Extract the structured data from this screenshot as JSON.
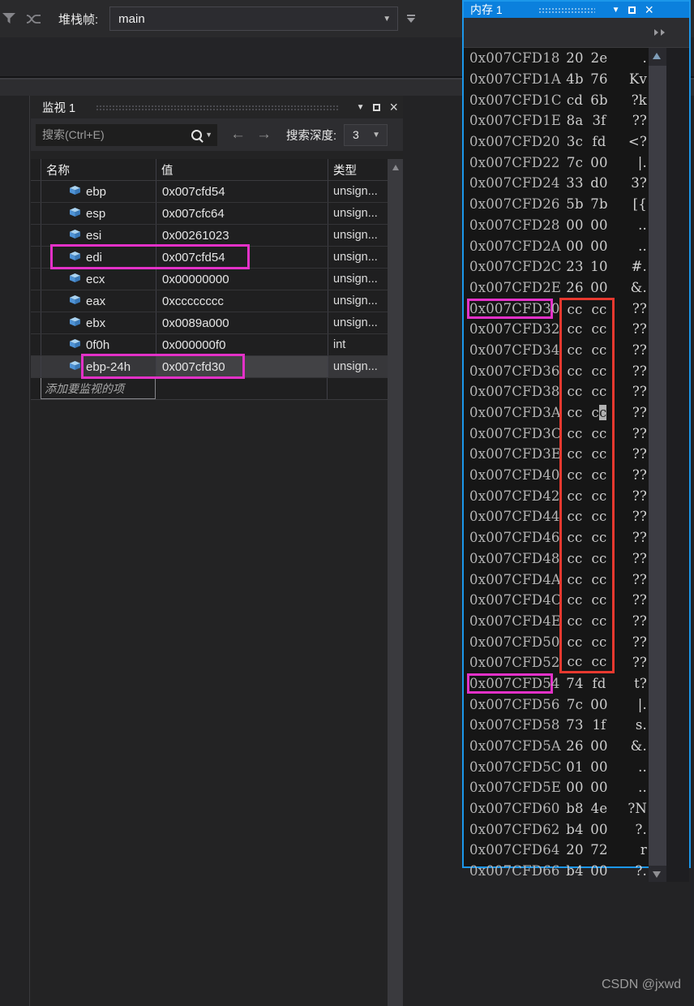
{
  "toolbar": {
    "stack_frame_label": "堆栈帧:",
    "stack_frame_value": "main"
  },
  "watch": {
    "title": "监视 1",
    "search_placeholder": "搜索(Ctrl+E)",
    "depth_label": "搜索深度:",
    "depth_value": "3",
    "columns": [
      "名称",
      "值",
      "类型"
    ],
    "rows": [
      {
        "name": "ebp",
        "value": "0x007cfd54",
        "type": "unsign..."
      },
      {
        "name": "esp",
        "value": "0x007cfc64",
        "type": "unsign..."
      },
      {
        "name": "esi",
        "value": "0x00261023",
        "type": "unsign..."
      },
      {
        "name": "edi",
        "value": "0x007cfd54",
        "type": "unsign...",
        "annot": true
      },
      {
        "name": "ecx",
        "value": "0x00000000",
        "type": "unsign..."
      },
      {
        "name": "eax",
        "value": "0xcccccccc",
        "type": "unsign..."
      },
      {
        "name": "ebx",
        "value": "0x0089a000",
        "type": "unsign..."
      },
      {
        "name": "0f0h",
        "value": "0x000000f0",
        "type": "int"
      },
      {
        "name": "ebp-24h",
        "value": "0x007cfd30",
        "type": "unsign...",
        "annot": true,
        "selected": true
      }
    ],
    "add_row_label": "添加要监视的项"
  },
  "memory": {
    "title": "内存 1",
    "rows": [
      {
        "a": "0x007CFD18",
        "b1": "20",
        "b2": "2e",
        "t": " ."
      },
      {
        "a": "0x007CFD1A",
        "b1": "4b",
        "b2": "76",
        "t": "Kv"
      },
      {
        "a": "0x007CFD1C",
        "b1": "cd",
        "b2": "6b",
        "t": "?k"
      },
      {
        "a": "0x007CFD1E",
        "b1": "8a",
        "b2": "3f",
        "t": "??"
      },
      {
        "a": "0x007CFD20",
        "b1": "3c",
        "b2": "fd",
        "t": "<?"
      },
      {
        "a": "0x007CFD22",
        "b1": "7c",
        "b2": "00",
        "t": "|."
      },
      {
        "a": "0x007CFD24",
        "b1": "33",
        "b2": "d0",
        "t": "3?"
      },
      {
        "a": "0x007CFD26",
        "b1": "5b",
        "b2": "7b",
        "t": "[{"
      },
      {
        "a": "0x007CFD28",
        "b1": "00",
        "b2": "00",
        "t": ".."
      },
      {
        "a": "0x007CFD2A",
        "b1": "00",
        "b2": "00",
        "t": ".."
      },
      {
        "a": "0x007CFD2C",
        "b1": "23",
        "b2": "10",
        "t": "#."
      },
      {
        "a": "0x007CFD2E",
        "b1": "26",
        "b2": "00",
        "t": "&."
      },
      {
        "a": "0x007CFD30",
        "b1": "cc",
        "b2": "cc",
        "t": "??",
        "abox": true,
        "rb": "start"
      },
      {
        "a": "0x007CFD32",
        "b1": "cc",
        "b2": "cc",
        "t": "??",
        "rb": "mid"
      },
      {
        "a": "0x007CFD34",
        "b1": "cc",
        "b2": "cc",
        "t": "??",
        "rb": "mid"
      },
      {
        "a": "0x007CFD36",
        "b1": "cc",
        "b2": "cc",
        "t": "??",
        "rb": "mid"
      },
      {
        "a": "0x007CFD38",
        "b1": "cc",
        "b2": "cc",
        "t": "??",
        "rb": "mid"
      },
      {
        "a": "0x007CFD3A",
        "b1": "cc",
        "b2": "cc",
        "t": "??",
        "rb": "mid",
        "cursor": true
      },
      {
        "a": "0x007CFD3C",
        "b1": "cc",
        "b2": "cc",
        "t": "??",
        "rb": "mid"
      },
      {
        "a": "0x007CFD3E",
        "b1": "cc",
        "b2": "cc",
        "t": "??",
        "rb": "mid"
      },
      {
        "a": "0x007CFD40",
        "b1": "cc",
        "b2": "cc",
        "t": "??",
        "rb": "mid"
      },
      {
        "a": "0x007CFD42",
        "b1": "cc",
        "b2": "cc",
        "t": "??",
        "rb": "mid"
      },
      {
        "a": "0x007CFD44",
        "b1": "cc",
        "b2": "cc",
        "t": "??",
        "rb": "mid"
      },
      {
        "a": "0x007CFD46",
        "b1": "cc",
        "b2": "cc",
        "t": "??",
        "rb": "mid"
      },
      {
        "a": "0x007CFD48",
        "b1": "cc",
        "b2": "cc",
        "t": "??",
        "rb": "mid"
      },
      {
        "a": "0x007CFD4A",
        "b1": "cc",
        "b2": "cc",
        "t": "??",
        "rb": "mid"
      },
      {
        "a": "0x007CFD4C",
        "b1": "cc",
        "b2": "cc",
        "t": "??",
        "rb": "mid"
      },
      {
        "a": "0x007CFD4E",
        "b1": "cc",
        "b2": "cc",
        "t": "??",
        "rb": "mid"
      },
      {
        "a": "0x007CFD50",
        "b1": "cc",
        "b2": "cc",
        "t": "??",
        "rb": "mid"
      },
      {
        "a": "0x007CFD52",
        "b1": "cc",
        "b2": "cc",
        "t": "??",
        "rb": "end"
      },
      {
        "a": "0x007CFD54",
        "b1": "74",
        "b2": "fd",
        "t": "t?",
        "abox": true
      },
      {
        "a": "0x007CFD56",
        "b1": "7c",
        "b2": "00",
        "t": "|."
      },
      {
        "a": "0x007CFD58",
        "b1": "73",
        "b2": "1f",
        "t": "s."
      },
      {
        "a": "0x007CFD5A",
        "b1": "26",
        "b2": "00",
        "t": "&."
      },
      {
        "a": "0x007CFD5C",
        "b1": "01",
        "b2": "00",
        "t": ".."
      },
      {
        "a": "0x007CFD5E",
        "b1": "00",
        "b2": "00",
        "t": ".."
      },
      {
        "a": "0x007CFD60",
        "b1": "b8",
        "b2": "4e",
        "t": "?N"
      },
      {
        "a": "0x007CFD62",
        "b1": "b4",
        "b2": "00",
        "t": "?."
      },
      {
        "a": "0x007CFD64",
        "b1": "20",
        "b2": "72",
        "t": " r"
      },
      {
        "a": "0x007CFD66",
        "b1": "b4",
        "b2": "00",
        "t": "?."
      }
    ]
  },
  "watermark": "CSDN @jxwd",
  "colors": {
    "active_title_blue": "#0b80dd",
    "window_border_blue": "#1c97ea",
    "annotation_magenta": "#e331c8",
    "annotation_red": "#e8392f"
  }
}
